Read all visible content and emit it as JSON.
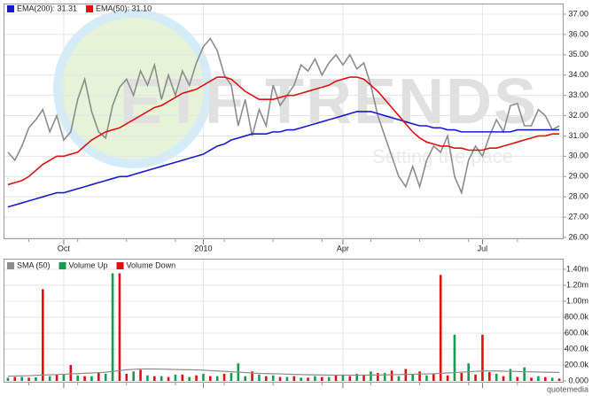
{
  "chart_data": [
    {
      "type": "line",
      "watermark": [
        "ETF TRENDS",
        "Setting the pace"
      ],
      "categories": [
        null,
        null,
        null,
        null,
        null,
        null,
        null,
        null,
        "Oct",
        null,
        null,
        null,
        null,
        null,
        null,
        null,
        null,
        null,
        null,
        null,
        null,
        null,
        null,
        null,
        null,
        null,
        null,
        null,
        "2010",
        null,
        null,
        null,
        null,
        null,
        null,
        null,
        null,
        null,
        null,
        null,
        null,
        null,
        null,
        null,
        null,
        null,
        null,
        null,
        "Apr",
        null,
        null,
        null,
        null,
        null,
        null,
        null,
        null,
        null,
        null,
        null,
        null,
        null,
        null,
        null,
        null,
        null,
        null,
        null,
        "Jul",
        null,
        null,
        null,
        null,
        null,
        null,
        null,
        null,
        null,
        null,
        null
      ],
      "ylim": [
        26,
        37
      ],
      "yticks": [
        {
          "value": 26,
          "label": "26.00"
        },
        {
          "value": 27,
          "label": "27.00"
        },
        {
          "value": 28,
          "label": "28.00"
        },
        {
          "value": 29,
          "label": "29.00"
        },
        {
          "value": 30,
          "label": "30.00"
        },
        {
          "value": 31,
          "label": "31.00"
        },
        {
          "value": 32,
          "label": "32.00"
        },
        {
          "value": 33,
          "label": "33.00"
        },
        {
          "value": 34,
          "label": "34.00"
        },
        {
          "value": 35,
          "label": "35.00"
        },
        {
          "value": 36,
          "label": "36.00"
        },
        {
          "value": 37,
          "label": "37.00"
        }
      ],
      "grid": true,
      "legend": "top-left",
      "series": [
        {
          "color": "#8c8c8c",
          "values": [
            30.2,
            29.8,
            30.5,
            31.4,
            31.8,
            32.3,
            31.2,
            32.0,
            30.8,
            31.2,
            32.8,
            33.8,
            32.2,
            31.2,
            30.9,
            32.5,
            33.4,
            33.8,
            33.0,
            34.2,
            33.5,
            34.5,
            32.8,
            34.0,
            33.0,
            34.2,
            33.5,
            34.6,
            35.4,
            35.8,
            35.2,
            34.0,
            33.5,
            31.5,
            32.8,
            31.0,
            32.3,
            31.5,
            33.5,
            32.5,
            33.0,
            33.5,
            34.5,
            34.2,
            34.8,
            34.0,
            34.6,
            35.0,
            34.5,
            35.0,
            34.3,
            34.6,
            33.5,
            32.0,
            31.0,
            30.0,
            29.0,
            28.5,
            29.5,
            28.5,
            29.8,
            30.5,
            30.2,
            31.0,
            29.0,
            28.2,
            29.8,
            30.5,
            30.0,
            31.0,
            31.8,
            31.2,
            32.5,
            32.6,
            31.5,
            31.5,
            32.3,
            32.0,
            31.3,
            31.5
          ]
        },
        {
          "name": "EMA(200): 31.31",
          "color": "#1a1acc",
          "values": [
            27.5,
            27.6,
            27.7,
            27.8,
            27.9,
            28.0,
            28.1,
            28.2,
            28.2,
            28.3,
            28.4,
            28.5,
            28.6,
            28.7,
            28.8,
            28.9,
            29.0,
            29.0,
            29.1,
            29.2,
            29.3,
            29.4,
            29.5,
            29.6,
            29.7,
            29.8,
            29.9,
            30.0,
            30.1,
            30.3,
            30.5,
            30.6,
            30.8,
            30.9,
            31.0,
            31.1,
            31.1,
            31.1,
            31.2,
            31.2,
            31.3,
            31.3,
            31.4,
            31.5,
            31.6,
            31.7,
            31.8,
            31.9,
            32.0,
            32.1,
            32.2,
            32.2,
            32.2,
            32.1,
            32.0,
            31.9,
            31.8,
            31.7,
            31.6,
            31.5,
            31.5,
            31.4,
            31.4,
            31.3,
            31.3,
            31.2,
            31.2,
            31.2,
            31.2,
            31.2,
            31.2,
            31.2,
            31.2,
            31.3,
            31.3,
            31.3,
            31.3,
            31.3,
            31.3,
            31.3
          ]
        },
        {
          "name": "EMA(50): 31.10",
          "color": "#e01010",
          "values": [
            28.6,
            28.7,
            28.8,
            29.0,
            29.3,
            29.6,
            29.8,
            30.0,
            30.0,
            30.1,
            30.2,
            30.5,
            30.8,
            31.0,
            31.2,
            31.3,
            31.4,
            31.6,
            31.8,
            32.0,
            32.2,
            32.4,
            32.5,
            32.7,
            32.9,
            33.1,
            33.2,
            33.3,
            33.5,
            33.7,
            33.9,
            33.9,
            33.8,
            33.5,
            33.2,
            33.0,
            32.8,
            32.8,
            32.8,
            32.9,
            33.0,
            33.0,
            33.1,
            33.2,
            33.3,
            33.4,
            33.5,
            33.7,
            33.8,
            33.9,
            33.9,
            33.8,
            33.5,
            33.2,
            32.8,
            32.4,
            32.0,
            31.6,
            31.2,
            30.9,
            30.7,
            30.6,
            30.5,
            30.5,
            30.4,
            30.4,
            30.3,
            30.3,
            30.3,
            30.4,
            30.4,
            30.5,
            30.6,
            30.7,
            30.8,
            30.9,
            31.0,
            31.0,
            31.1,
            31.1
          ]
        }
      ]
    },
    {
      "type": "bar",
      "source": "quotemedia",
      "ylim": [
        0,
        1400000
      ],
      "yticks": [
        {
          "value": 0,
          "label": "0.000"
        },
        {
          "value": 200000,
          "label": "200.0k"
        },
        {
          "value": 400000,
          "label": "400.0k"
        },
        {
          "value": 600000,
          "label": "600.0k"
        },
        {
          "value": 800000,
          "label": "800.0k"
        },
        {
          "value": 1000000,
          "label": "1.00m"
        },
        {
          "value": 1200000,
          "label": "1.20m"
        },
        {
          "value": 1400000,
          "label": "1.40m"
        }
      ],
      "grid": true,
      "legend": "top-left",
      "series": [
        {
          "name": "SMA (50)",
          "type": "line",
          "color": "#8c8c8c",
          "values": [
            60000,
            62000,
            64000,
            66000,
            70000,
            74000,
            78000,
            80000,
            84000,
            88000,
            92000,
            96000,
            100000,
            105000,
            110000,
            120000,
            130000,
            140000,
            145000,
            150000,
            150000,
            150000,
            148000,
            146000,
            144000,
            142000,
            140000,
            138000,
            135000,
            130000,
            125000,
            120000,
            115000,
            110000,
            105000,
            100000,
            95000,
            92000,
            90000,
            88000,
            85000,
            82000,
            80000,
            78000,
            76000,
            75000,
            74000,
            73000,
            72000,
            72000,
            72000,
            73000,
            74000,
            75000,
            76000,
            78000,
            80000,
            82000,
            84000,
            86000,
            88000,
            90000,
            95000,
            100000,
            105000,
            110000,
            115000,
            120000,
            125000,
            125000,
            125000,
            122000,
            120000,
            118000,
            116000,
            114000,
            112000,
            110000,
            108000,
            106000
          ]
        },
        {
          "name": "Volume Up",
          "color": "#1a9a50",
          "values": [
            40000,
            null,
            50000,
            null,
            45000,
            null,
            60000,
            null,
            80000,
            null,
            70000,
            null,
            60000,
            null,
            90000,
            1350000,
            null,
            null,
            120000,
            null,
            70000,
            null,
            60000,
            null,
            80000,
            null,
            50000,
            null,
            90000,
            null,
            60000,
            null,
            100000,
            220000,
            60000,
            null,
            80000,
            null,
            70000,
            null,
            50000,
            null,
            40000,
            null,
            60000,
            null,
            50000,
            null,
            80000,
            null,
            90000,
            null,
            120000,
            null,
            100000,
            null,
            60000,
            null,
            80000,
            null,
            70000,
            null,
            null,
            null,
            580000,
            null,
            220000,
            null,
            null,
            null,
            90000,
            null,
            150000,
            null,
            170000,
            null,
            60000,
            null,
            40000,
            null
          ]
        },
        {
          "name": "Volume Down",
          "color": "#e01010",
          "values": [
            null,
            50000,
            null,
            40000,
            null,
            1150000,
            null,
            80000,
            null,
            200000,
            null,
            60000,
            null,
            100000,
            null,
            null,
            1350000,
            90000,
            null,
            140000,
            null,
            60000,
            null,
            50000,
            null,
            80000,
            null,
            70000,
            null,
            60000,
            null,
            90000,
            null,
            null,
            null,
            120000,
            null,
            60000,
            null,
            50000,
            null,
            60000,
            null,
            40000,
            null,
            50000,
            null,
            70000,
            null,
            60000,
            null,
            80000,
            null,
            100000,
            null,
            130000,
            null,
            150000,
            null,
            120000,
            null,
            90000,
            1330000,
            70000,
            null,
            100000,
            null,
            80000,
            580000,
            110000,
            null,
            60000,
            null,
            50000,
            null,
            40000,
            null,
            50000,
            null,
            30000
          ]
        }
      ]
    }
  ]
}
